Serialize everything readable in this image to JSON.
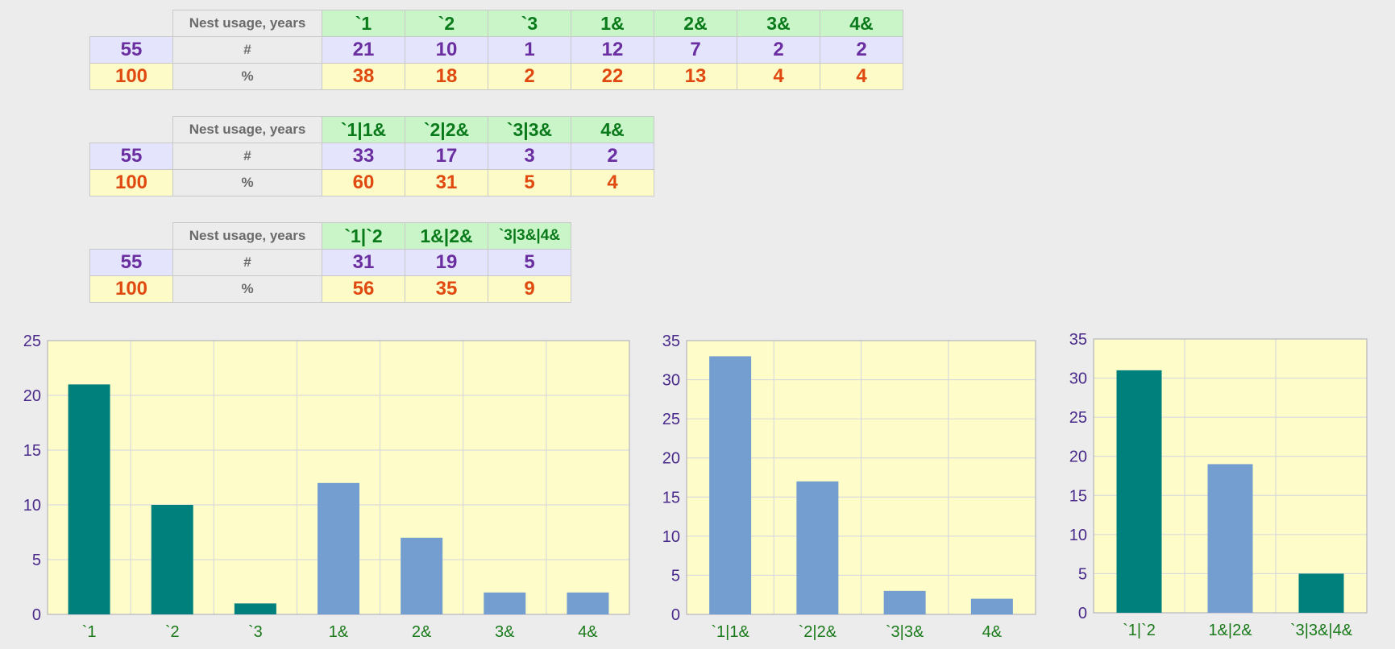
{
  "tables": [
    {
      "label": "Nest usage, years",
      "count_label": "#",
      "pct_label": "%",
      "total_count": "55",
      "total_pct": "100",
      "columns": [
        "`1",
        "`2",
        "`3",
        "1&",
        "2&",
        "3&",
        "4&"
      ],
      "counts": [
        "21",
        "10",
        "1",
        "12",
        "7",
        "2",
        "2"
      ],
      "pcts": [
        "38",
        "18",
        "2",
        "22",
        "13",
        "4",
        "4"
      ]
    },
    {
      "label": "Nest usage, years",
      "count_label": "#",
      "pct_label": "%",
      "total_count": "55",
      "total_pct": "100",
      "columns": [
        "`1|1&",
        "`2|2&",
        "`3|3&",
        "4&"
      ],
      "counts": [
        "33",
        "17",
        "3",
        "2"
      ],
      "pcts": [
        "60",
        "31",
        "5",
        "4"
      ]
    },
    {
      "label": "Nest usage, years",
      "count_label": "#",
      "pct_label": "%",
      "total_count": "55",
      "total_pct": "100",
      "columns": [
        "`1|`2",
        "1&|2&",
        "`3|3&|4&"
      ],
      "counts": [
        "31",
        "19",
        "5"
      ],
      "pcts": [
        "56",
        "35",
        "9"
      ]
    }
  ],
  "colors": {
    "teal": "#00807d",
    "blue": "#749ed0",
    "plot_bg": "#fefdc9",
    "grid": "#d4d4e0"
  },
  "chart_data": [
    {
      "type": "bar",
      "categories": [
        "`1",
        "`2",
        "`3",
        "1&",
        "2&",
        "3&",
        "4&"
      ],
      "values": [
        21,
        10,
        1,
        12,
        7,
        2,
        2
      ],
      "bar_colors": [
        "teal",
        "teal",
        "teal",
        "blue",
        "blue",
        "blue",
        "blue"
      ],
      "ylim": [
        0,
        25
      ],
      "yticks": [
        0,
        5,
        10,
        15,
        20,
        25
      ],
      "grid": true,
      "title": "",
      "xlabel": "",
      "ylabel": ""
    },
    {
      "type": "bar",
      "categories": [
        "`1|1&",
        "`2|2&",
        "`3|3&",
        "4&"
      ],
      "values": [
        33,
        17,
        3,
        2
      ],
      "bar_colors": [
        "blue",
        "blue",
        "blue",
        "blue"
      ],
      "ylim": [
        0,
        35
      ],
      "yticks": [
        0,
        5,
        10,
        15,
        20,
        25,
        30,
        35
      ],
      "grid": true,
      "title": "",
      "xlabel": "",
      "ylabel": ""
    },
    {
      "type": "bar",
      "categories": [
        "`1|`2",
        "1&|2&",
        "`3|3&|4&"
      ],
      "values": [
        31,
        19,
        5
      ],
      "bar_colors": [
        "teal",
        "blue",
        "teal"
      ],
      "ylim": [
        0,
        35
      ],
      "yticks": [
        0,
        5,
        10,
        15,
        20,
        25,
        30,
        35
      ],
      "grid": true,
      "title": "",
      "xlabel": "",
      "ylabel": ""
    }
  ]
}
